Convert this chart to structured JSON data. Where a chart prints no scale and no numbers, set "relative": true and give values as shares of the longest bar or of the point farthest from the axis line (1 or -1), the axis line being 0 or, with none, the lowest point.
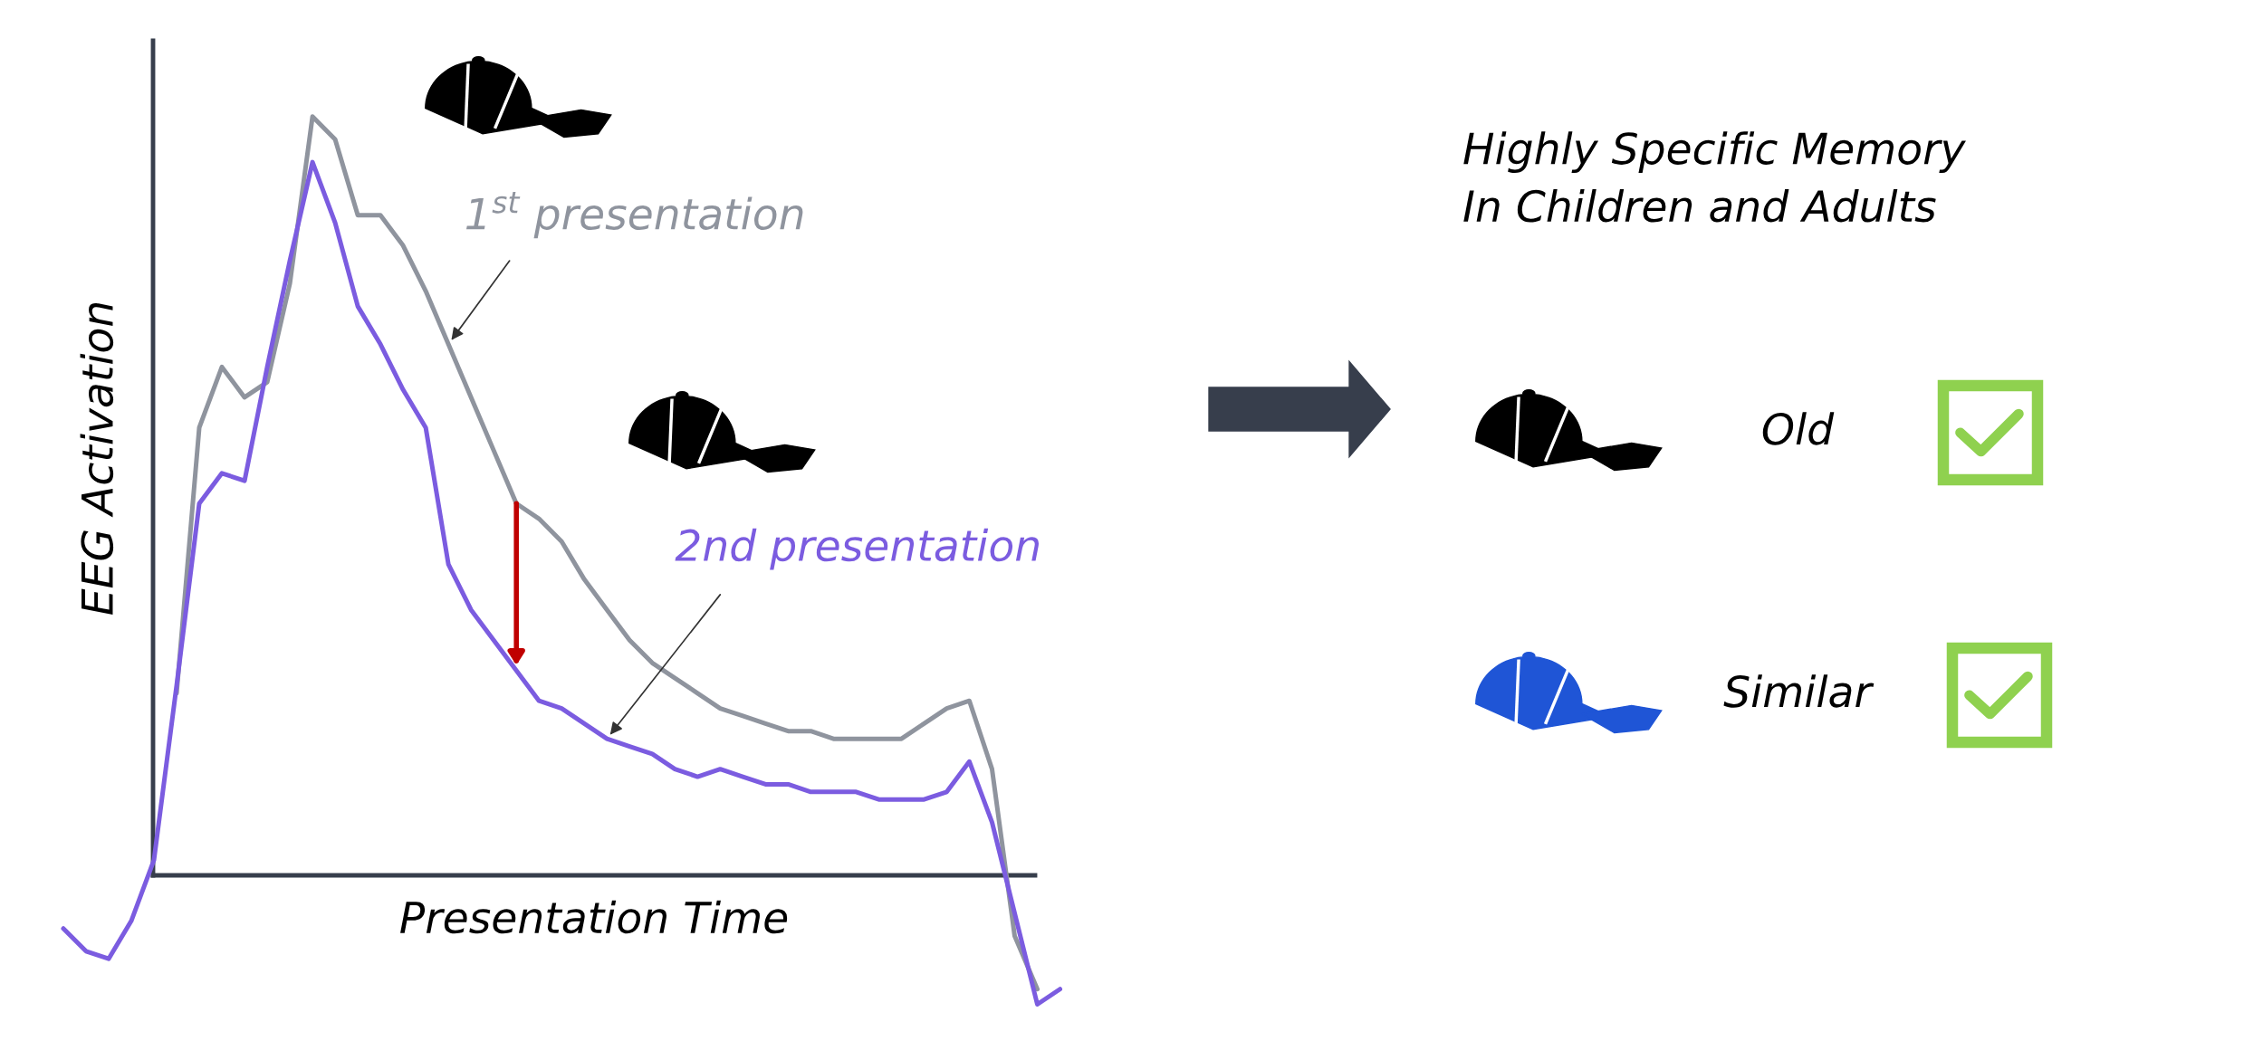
{
  "chart_data": [
    {
      "type": "line",
      "relative": true,
      "xlabel": "Presentation Time",
      "ylabel": "EEG Activation",
      "categories": [
        null,
        null,
        null,
        null,
        null,
        null,
        null,
        null,
        null,
        null,
        null,
        null,
        null,
        null,
        null,
        null,
        null,
        null,
        null,
        null,
        null,
        null,
        null,
        null,
        null,
        null,
        null,
        null,
        null,
        null,
        null,
        null,
        null,
        null,
        null,
        null,
        null,
        null,
        null,
        null,
        null,
        null,
        null,
        null,
        null
      ],
      "series": [
        {
          "name": "1$^{st}$ presentation",
          "color": "#8f949e",
          "values": [
            null,
            null,
            null,
            null,
            null,
            0.24,
            0.59,
            0.67,
            0.63,
            0.65,
            0.78,
            1.0,
            0.97,
            0.87,
            0.87,
            0.83,
            0.77,
            0.7,
            0.63,
            0.56,
            0.49,
            0.47,
            0.44,
            0.39,
            0.35,
            0.31,
            0.28,
            0.26,
            0.24,
            0.22,
            0.21,
            0.2,
            0.19,
            0.19,
            0.18,
            0.18,
            0.18,
            0.18,
            0.2,
            0.22,
            0.23,
            0.14,
            -0.08,
            -0.15,
            null
          ]
        },
        {
          "name": "2nd presentation",
          "color": "#7b5ce0",
          "values": [
            -0.07,
            -0.1,
            -0.11,
            -0.06,
            0.02,
            0.25,
            0.49,
            0.53,
            0.52,
            0.67,
            0.81,
            0.94,
            0.86,
            0.75,
            0.7,
            0.64,
            0.59,
            0.41,
            0.35,
            0.31,
            0.27,
            0.23,
            0.22,
            0.2,
            0.18,
            0.17,
            0.16,
            0.14,
            0.13,
            0.14,
            0.13,
            0.12,
            0.12,
            0.11,
            0.11,
            0.11,
            0.1,
            0.1,
            0.1,
            0.11,
            0.15,
            0.07,
            -0.05,
            -0.17,
            -0.15
          ]
        }
      ]
    },
    {
      "type": "other",
      "title": "Highly Specific Memory\nIn Children and Adults",
      "categories": [
        "Old",
        "Similar"
      ]
    }
  ]
}
